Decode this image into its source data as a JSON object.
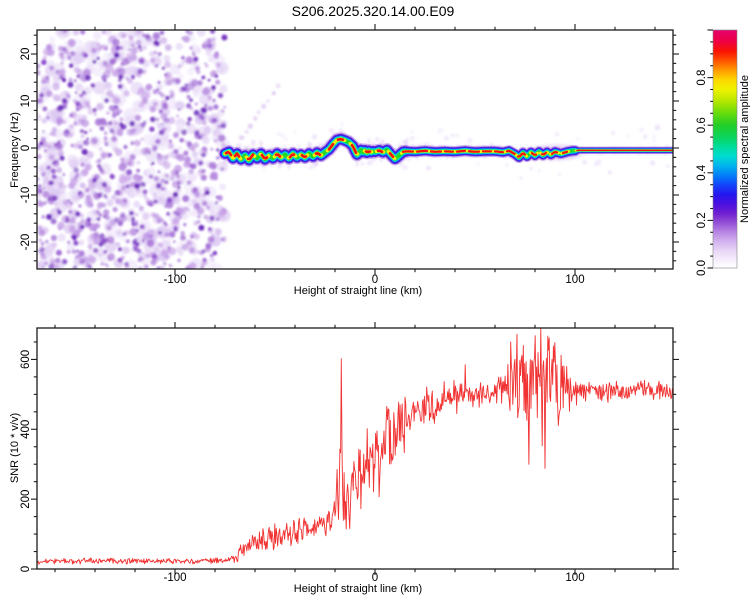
{
  "title": "S206.2025.320.14.00.E09",
  "chart_data": [
    {
      "type": "heatmap",
      "panel": "spectrogram",
      "xlabel": "Height of straight line (km)",
      "ylabel": "Frequency (Hz)",
      "xlim": [
        -169,
        149
      ],
      "ylim": [
        -25,
        25
      ],
      "x_ticks": [
        -100,
        0,
        100
      ],
      "y_ticks": [
        -20,
        -10,
        0,
        10,
        20
      ],
      "x_minor_step_km": 20,
      "y_minor_step_hz": 2,
      "noise_region_km": [
        -169,
        -75
      ],
      "noise_palette": {
        "light": [
          "#f1e9fb",
          "#e6d7f6",
          "#dcc8f2"
        ],
        "mid": [
          "#c9a4e8",
          "#b78ae0",
          "#a46fd6"
        ],
        "dark": [
          "#8d4ece",
          "#7a38c4",
          "#6a28bc"
        ]
      },
      "colorbar": {
        "label": "Normalized spectral amplitude",
        "ticks": [
          "0.0",
          "0.2",
          "0.4",
          "0.6",
          "0.8"
        ],
        "tick_values": [
          0,
          0.2,
          0.4,
          0.6,
          0.8
        ],
        "range": [
          0,
          1
        ],
        "stops": [
          [
            0.0,
            "#ffffff"
          ],
          [
            0.03,
            "#f7f0fc"
          ],
          [
            0.07,
            "#e9d8f7"
          ],
          [
            0.11,
            "#d4b4ef"
          ],
          [
            0.15,
            "#b886e3"
          ],
          [
            0.19,
            "#9450d6"
          ],
          [
            0.23,
            "#6f1fd0"
          ],
          [
            0.27,
            "#4a10e0"
          ],
          [
            0.31,
            "#2318ee"
          ],
          [
            0.35,
            "#1245fa"
          ],
          [
            0.39,
            "#0080f8"
          ],
          [
            0.43,
            "#00b4ee"
          ],
          [
            0.47,
            "#00dcd0"
          ],
          [
            0.51,
            "#00dc9a"
          ],
          [
            0.55,
            "#0cd55c"
          ],
          [
            0.6,
            "#22cd28"
          ],
          [
            0.65,
            "#66dc0c"
          ],
          [
            0.7,
            "#b4e600"
          ],
          [
            0.75,
            "#eef200"
          ],
          [
            0.79,
            "#fdd800"
          ],
          [
            0.83,
            "#ff9c00"
          ],
          [
            0.87,
            "#ff5400"
          ],
          [
            0.91,
            "#f91400"
          ],
          [
            0.95,
            "#ee0040"
          ],
          [
            1.0,
            "#e4006e"
          ]
        ]
      },
      "signal_band": {
        "start_km": -75,
        "end_km": 149,
        "center_hz": [
          [
            -75,
            -1.2
          ],
          [
            -73,
            -0.8
          ],
          [
            -71,
            -2.2
          ],
          [
            -69,
            -1.2
          ],
          [
            -67,
            -2.4
          ],
          [
            -65,
            -1.6
          ],
          [
            -63,
            -2.6
          ],
          [
            -61,
            -1.4
          ],
          [
            -59,
            -2.2
          ],
          [
            -57,
            -1.2
          ],
          [
            -55,
            -2.4
          ],
          [
            -53,
            -1.6
          ],
          [
            -51,
            -2.2
          ],
          [
            -49,
            -1.2
          ],
          [
            -47,
            -2.0
          ],
          [
            -45,
            -1.4
          ],
          [
            -43,
            -2.2
          ],
          [
            -41,
            -1.2
          ],
          [
            -39,
            -2.0
          ],
          [
            -37,
            -1.4
          ],
          [
            -35,
            -2.0
          ],
          [
            -33,
            -1.2
          ],
          [
            -31,
            -1.8
          ],
          [
            -29,
            -1.0
          ],
          [
            -27,
            -1.6
          ],
          [
            -25,
            -0.9
          ],
          [
            -23,
            -0.3
          ],
          [
            -21,
            0.8
          ],
          [
            -19,
            1.7
          ],
          [
            -17,
            1.9
          ],
          [
            -15,
            1.6
          ],
          [
            -13,
            1.2
          ],
          [
            -11,
            0.4
          ],
          [
            -10,
            -0.6
          ],
          [
            -9,
            -1.4
          ],
          [
            -8,
            -1.0
          ],
          [
            -7,
            -0.4
          ],
          [
            -6,
            -0.9
          ],
          [
            -5,
            -0.5
          ],
          [
            -4,
            -1.0
          ],
          [
            -3,
            -0.6
          ],
          [
            -2,
            -0.9
          ],
          [
            -1,
            -0.7
          ],
          [
            0,
            -0.8
          ],
          [
            2,
            -0.5
          ],
          [
            4,
            -0.9
          ],
          [
            6,
            -0.4
          ],
          [
            8,
            -1.4
          ],
          [
            10,
            -2.3
          ],
          [
            12,
            -1.6
          ],
          [
            14,
            -0.8
          ],
          [
            16,
            -0.7
          ],
          [
            20,
            -0.8
          ],
          [
            25,
            -0.6
          ],
          [
            30,
            -0.8
          ],
          [
            35,
            -0.7
          ],
          [
            40,
            -0.8
          ],
          [
            45,
            -0.6
          ],
          [
            50,
            -0.8
          ],
          [
            55,
            -0.7
          ],
          [
            60,
            -0.7
          ],
          [
            64,
            -0.9
          ],
          [
            67,
            -0.6
          ],
          [
            70,
            -1.3
          ],
          [
            72,
            -2.0
          ],
          [
            74,
            -1.0
          ],
          [
            76,
            -1.8
          ],
          [
            78,
            -0.9
          ],
          [
            80,
            -1.6
          ],
          [
            82,
            -0.8
          ],
          [
            84,
            -1.5
          ],
          [
            86,
            -0.9
          ],
          [
            88,
            -1.4
          ],
          [
            90,
            -0.8
          ],
          [
            93,
            -1.2
          ],
          [
            96,
            -0.8
          ],
          [
            99,
            -0.6
          ],
          [
            102,
            -0.5
          ],
          [
            110,
            -0.5
          ],
          [
            120,
            -0.5
          ],
          [
            130,
            -0.5
          ],
          [
            140,
            -0.5
          ],
          [
            149,
            -0.5
          ]
        ],
        "core_segments_km": [
          [
            -74.5,
            -72
          ],
          [
            -70,
            -68
          ],
          [
            -63.5,
            -61
          ],
          [
            -56.5,
            -54
          ],
          [
            -49.5,
            -47.5
          ],
          [
            -42.5,
            -40.5
          ],
          [
            -36.5,
            -34.5
          ],
          [
            -29.5,
            -27.5
          ],
          [
            -23,
            -21
          ],
          [
            -18.5,
            -16
          ],
          [
            -11.5,
            -9.5
          ],
          [
            -4.5,
            -2.5
          ],
          [
            1.5,
            3.5
          ],
          [
            7.5,
            9
          ],
          [
            14,
            19
          ],
          [
            21,
            26
          ],
          [
            28,
            33
          ],
          [
            35,
            39
          ],
          [
            41,
            45
          ],
          [
            47,
            52
          ],
          [
            54,
            58
          ],
          [
            60,
            64
          ],
          [
            66,
            70
          ],
          [
            71.5,
            75
          ],
          [
            78.5,
            80.5
          ],
          [
            83.5,
            85.5
          ],
          [
            88.5,
            91
          ],
          [
            94,
            96
          ],
          [
            101,
            149.3
          ]
        ],
        "layers": [
          [
            "#9a5fe0",
            12,
            0.5
          ],
          [
            "#5316dd",
            9.5,
            0.9
          ],
          [
            "#2a22ec",
            7.6,
            1
          ],
          [
            "#00baf5",
            6,
            1
          ],
          [
            "#00e2b8",
            4.6,
            1
          ],
          [
            "#28d52a",
            3.4,
            1
          ]
        ],
        "core_yellow": "#f3ef0c",
        "core_red": "#f11212",
        "fuzz_color": "#c2a0e4",
        "streak": {
          "from_km_hz": [
            -67,
            2.2
          ],
          "to_km_hz": [
            -48,
            13
          ],
          "dots": 9
        }
      }
    },
    {
      "type": "line",
      "panel": "snr",
      "xlabel": "Height of straight line (km)",
      "ylabel": "SNR (10 * v/v)",
      "xlim": [
        -169,
        149
      ],
      "ylim": [
        0,
        690
      ],
      "x_ticks": [
        -100,
        0,
        100
      ],
      "y_ticks": [
        0,
        200,
        400,
        600
      ],
      "x_minor_step_km": 20,
      "y_minor_step": 50,
      "series": [
        {
          "name": "SNR",
          "color": "#f13232",
          "envelope": [
            [
              -169,
              22,
              14
            ],
            [
              -150,
              22,
              14
            ],
            [
              -130,
              24,
              16
            ],
            [
              -110,
              22,
              14
            ],
            [
              -90,
              23,
              14
            ],
            [
              -75,
              24,
              16
            ],
            [
              -70,
              30,
              24
            ],
            [
              -66,
              55,
              45
            ],
            [
              -62,
              75,
              60
            ],
            [
              -58,
              70,
              55
            ],
            [
              -54,
              85,
              60
            ],
            [
              -50,
              95,
              65
            ],
            [
              -46,
              90,
              60
            ],
            [
              -42,
              105,
              65
            ],
            [
              -38,
              115,
              70
            ],
            [
              -34,
              115,
              65
            ],
            [
              -30,
              125,
              70
            ],
            [
              -26,
              135,
              75
            ],
            [
              -23,
              150,
              85
            ],
            [
              -20,
              175,
              110
            ],
            [
              -18,
              260,
              330
            ],
            [
              -17,
              300,
              400
            ],
            [
              -16,
              250,
              280
            ],
            [
              -14,
              150,
              160
            ],
            [
              -12,
              200,
              190
            ],
            [
              -10,
              260,
              200
            ],
            [
              -8,
              230,
              190
            ],
            [
              -6,
              300,
              200
            ],
            [
              -4,
              280,
              190
            ],
            [
              -2,
              320,
              190
            ],
            [
              0,
              330,
              190
            ],
            [
              2,
              310,
              180
            ],
            [
              4,
              360,
              160
            ],
            [
              6,
              380,
              150
            ],
            [
              8,
              340,
              170
            ],
            [
              10,
              380,
              150
            ],
            [
              12,
              420,
              130
            ],
            [
              14,
              410,
              140
            ],
            [
              16,
              440,
              110
            ],
            [
              18,
              430,
              120
            ],
            [
              20,
              450,
              100
            ],
            [
              23,
              460,
              100
            ],
            [
              26,
              470,
              90
            ],
            [
              29,
              455,
              95
            ],
            [
              32,
              480,
              85
            ],
            [
              35,
              490,
              80
            ],
            [
              38,
              500,
              75
            ],
            [
              41,
              490,
              80
            ],
            [
              44,
              505,
              70
            ],
            [
              47,
              495,
              75
            ],
            [
              50,
              505,
              65
            ],
            [
              53,
              500,
              70
            ],
            [
              56,
              505,
              65
            ],
            [
              59,
              510,
              60
            ],
            [
              62,
              515,
              70
            ],
            [
              65,
              525,
              90
            ],
            [
              68,
              520,
              160
            ],
            [
              71,
              530,
              220
            ],
            [
              74,
              525,
              260
            ],
            [
              77,
              515,
              240
            ],
            [
              80,
              530,
              260
            ],
            [
              83,
              520,
              280
            ],
            [
              86,
              525,
              260
            ],
            [
              89,
              530,
              220
            ],
            [
              92,
              515,
              180
            ],
            [
              95,
              525,
              140
            ],
            [
              98,
              515,
              100
            ],
            [
              101,
              510,
              70
            ],
            [
              105,
              508,
              55
            ],
            [
              110,
              512,
              48
            ],
            [
              116,
              506,
              50
            ],
            [
              122,
              512,
              46
            ],
            [
              128,
              508,
              50
            ],
            [
              134,
              512,
              46
            ],
            [
              140,
              508,
              48
            ],
            [
              145,
              512,
              46
            ],
            [
              149,
              508,
              48
            ]
          ],
          "spikes": [
            [
              -17,
              602
            ],
            [
              45,
              585
            ],
            [
              68,
              650
            ],
            [
              71,
              672
            ],
            [
              74,
              640
            ],
            [
              77,
              300
            ],
            [
              80,
              668
            ],
            [
              83,
              690
            ],
            [
              85,
              288
            ],
            [
              87,
              662
            ],
            [
              90,
              648
            ],
            [
              93,
              612
            ],
            [
              96,
              580
            ]
          ]
        }
      ]
    }
  ]
}
